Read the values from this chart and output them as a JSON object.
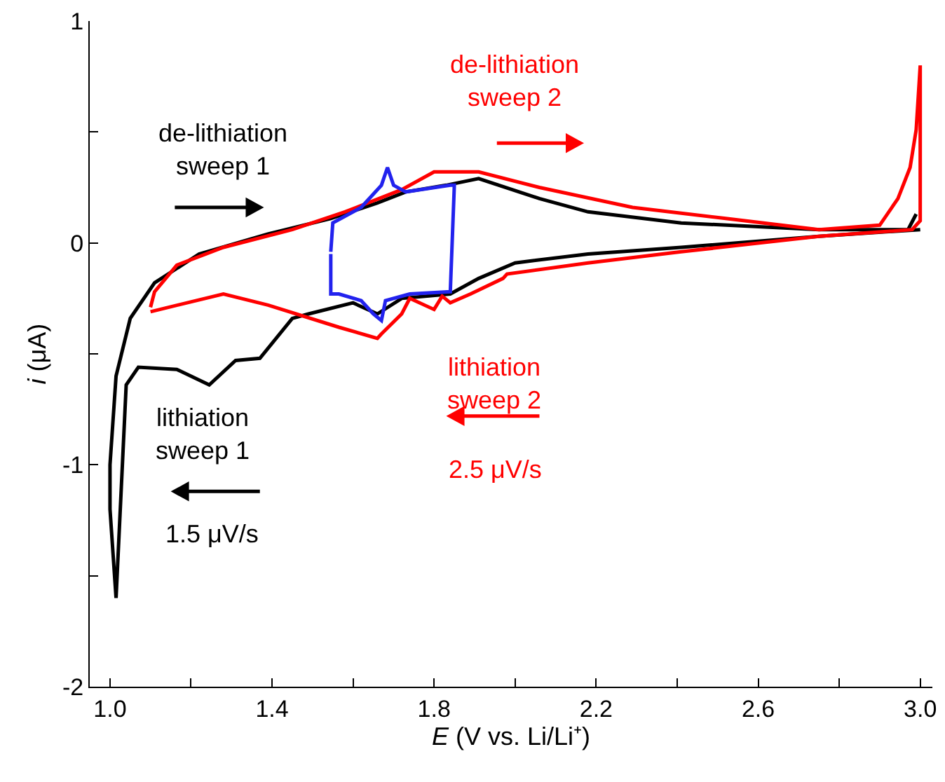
{
  "chart_data": {
    "type": "line",
    "xlabel": "E (V vs. Li/Li⁺)",
    "ylabel": "i (μA)",
    "xlim": [
      0.95,
      3.03
    ],
    "ylim": [
      -2,
      1
    ],
    "xticks": [
      {
        "value": 1,
        "label": "1.0"
      },
      {
        "value": 1.2,
        "label": null
      },
      1.4,
      {
        "value": 1.6,
        "label": null
      },
      1.8,
      {
        "value": 2,
        "label": null
      },
      2.2,
      {
        "value": 2.4,
        "label": null
      },
      2.6,
      {
        "value": 2.8,
        "label": null
      },
      {
        "value": 3,
        "label": "3.0"
      }
    ],
    "yticks": [
      -2,
      {
        "value": -1.5,
        "label": null
      },
      -1,
      {
        "value": -0.5,
        "label": null
      },
      0,
      {
        "value": 0.5,
        "label": null
      },
      1
    ],
    "marker": "none",
    "line_style": "solid",
    "annotations": [
      "de-lithiation\nsweep 1",
      "lithiation\nsweep 1",
      "1.5 μV/s",
      "de-lithiation\nsweep 2",
      "lithiation\nsweep 2",
      "2.5 μV/s"
    ],
    "series": [
      {
        "color": "#000000",
        "x": [
          3.0,
          2.75,
          2.41,
          2.18,
          2.0,
          1.91,
          1.84,
          1.72,
          1.66,
          1.6,
          1.49,
          1.45,
          1.37,
          1.31,
          1.245,
          1.165,
          1.07,
          1.04,
          1.015,
          1.0,
          1.0,
          1.015,
          1.05,
          1.11,
          1.22,
          1.39,
          1.545,
          1.66,
          1.73,
          1.83,
          1.91,
          2.06,
          2.18,
          2.41,
          2.75,
          2.97,
          2.99
        ],
        "values": [
          0.06,
          0.03,
          -0.02,
          -0.05,
          -0.09,
          -0.16,
          -0.23,
          -0.25,
          -0.32,
          -0.27,
          -0.32,
          -0.34,
          -0.52,
          -0.53,
          -0.64,
          -0.57,
          -0.56,
          -0.64,
          -1.6,
          -1.2,
          -1.0,
          -0.6,
          -0.34,
          -0.18,
          -0.05,
          0.04,
          0.11,
          0.18,
          0.23,
          0.26,
          0.29,
          0.2,
          0.14,
          0.09,
          0.06,
          0.06,
          0.13
        ]
      },
      {
        "color": "#ff0000",
        "x": [
          1.1,
          1.11,
          1.165,
          1.28,
          1.45,
          1.58,
          1.72,
          1.79,
          1.8,
          1.91,
          2.06,
          2.29,
          2.52,
          2.75,
          2.9,
          2.945,
          2.975,
          2.99,
          3.0,
          3.0,
          2.98,
          2.75,
          2.41,
          2.18,
          1.98,
          1.97,
          1.89,
          1.84,
          1.82,
          1.8,
          1.74,
          1.72,
          1.67,
          1.66,
          1.565,
          1.39,
          1.28,
          1.1
        ],
        "values": [
          -0.29,
          -0.22,
          -0.1,
          -0.02,
          0.06,
          0.14,
          0.24,
          0.31,
          0.32,
          0.32,
          0.25,
          0.16,
          0.11,
          0.06,
          0.08,
          0.2,
          0.34,
          0.51,
          0.8,
          0.1,
          0.06,
          0.03,
          -0.04,
          -0.09,
          -0.14,
          -0.16,
          -0.23,
          -0.27,
          -0.24,
          -0.3,
          -0.25,
          -0.32,
          -0.41,
          -0.43,
          -0.38,
          -0.28,
          -0.23,
          -0.31
        ]
      },
      {
        "color": "#2222ee",
        "x": [
          1.545,
          1.55,
          1.62,
          1.67,
          1.685,
          1.7,
          1.73,
          1.84,
          1.85,
          1.84,
          1.74,
          1.68,
          1.67,
          1.65,
          1.62,
          1.565,
          1.545,
          1.545
        ],
        "values": [
          -0.04,
          0.09,
          0.16,
          0.26,
          0.34,
          0.26,
          0.23,
          0.26,
          0.26,
          -0.22,
          -0.23,
          -0.26,
          -0.35,
          -0.32,
          -0.26,
          -0.23,
          -0.23,
          -0.05
        ]
      }
    ]
  }
}
